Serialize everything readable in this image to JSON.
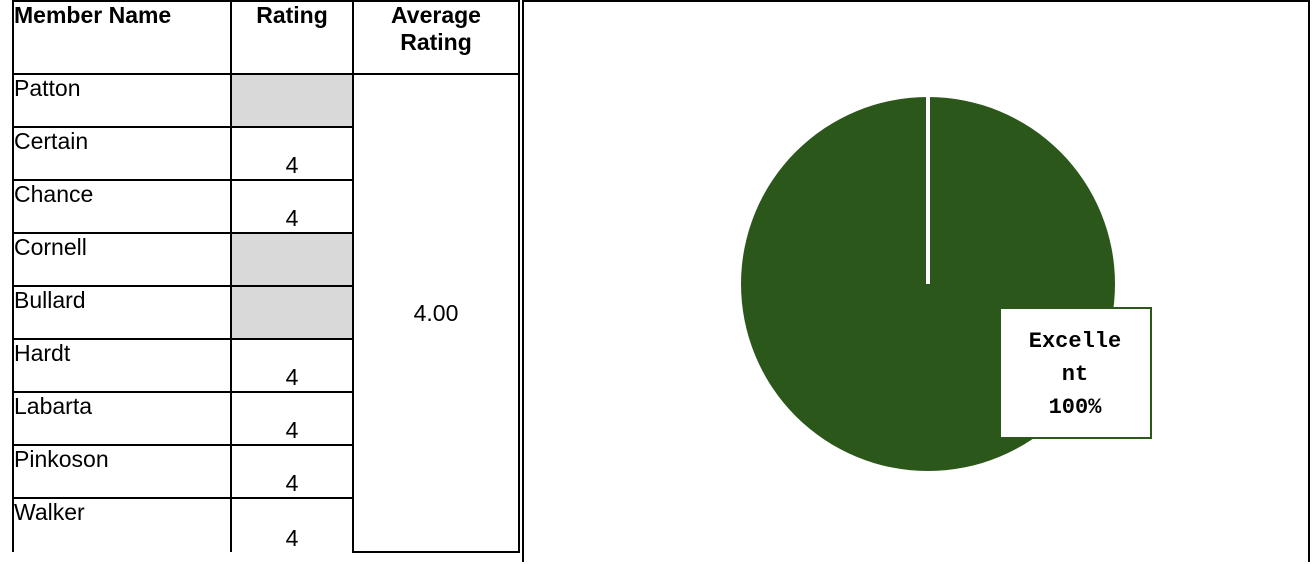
{
  "table": {
    "headers": {
      "name": "Member Name",
      "rating": "Rating",
      "average": "Average Rating"
    },
    "rows": [
      {
        "name": "Patton",
        "rating": ""
      },
      {
        "name": "Certain",
        "rating": "4"
      },
      {
        "name": "Chance",
        "rating": "4"
      },
      {
        "name": "Cornell",
        "rating": ""
      },
      {
        "name": "Bullard",
        "rating": ""
      },
      {
        "name": "Hardt",
        "rating": "4"
      },
      {
        "name": "Labarta",
        "rating": "4"
      },
      {
        "name": "Pinkoson",
        "rating": "4"
      },
      {
        "name": "Walker",
        "rating": "4"
      }
    ],
    "average_value": "4.00"
  },
  "chart_data": {
    "type": "pie",
    "categories": [
      "Excellent"
    ],
    "values": [
      100
    ],
    "data_labels": [
      [
        "Excelle",
        "nt",
        "100%"
      ]
    ],
    "colors": {
      "slice": "#2b571b",
      "label_bg": "#ffffff",
      "label_border": "#2b571b"
    },
    "title": ""
  }
}
